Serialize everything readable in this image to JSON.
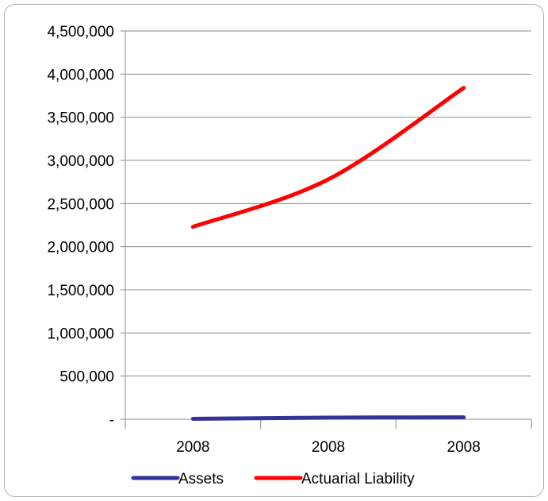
{
  "chart_data": {
    "type": "line",
    "categories": [
      "2008",
      "2008",
      "2008"
    ],
    "series": [
      {
        "name": "Assets",
        "color": "#333399",
        "values": [
          5000,
          18000,
          22000
        ]
      },
      {
        "name": "Actuarial Liability",
        "color": "#ff0000",
        "values": [
          2230000,
          2780000,
          3840000
        ]
      }
    ],
    "ylim": [
      0,
      4500000
    ],
    "y_ticks": [
      0,
      500000,
      1000000,
      1500000,
      2000000,
      2500000,
      3000000,
      3500000,
      4000000,
      4500000
    ],
    "y_tick_labels": [
      "-",
      "500,000",
      "1,000,000",
      "1,500,000",
      "2,000,000",
      "2,500,000",
      "3,000,000",
      "3,500,000",
      "4,000,000",
      "4,500,000"
    ],
    "grid": true,
    "legend_position": "bottom",
    "title": "",
    "xlabel": "",
    "ylabel": ""
  }
}
